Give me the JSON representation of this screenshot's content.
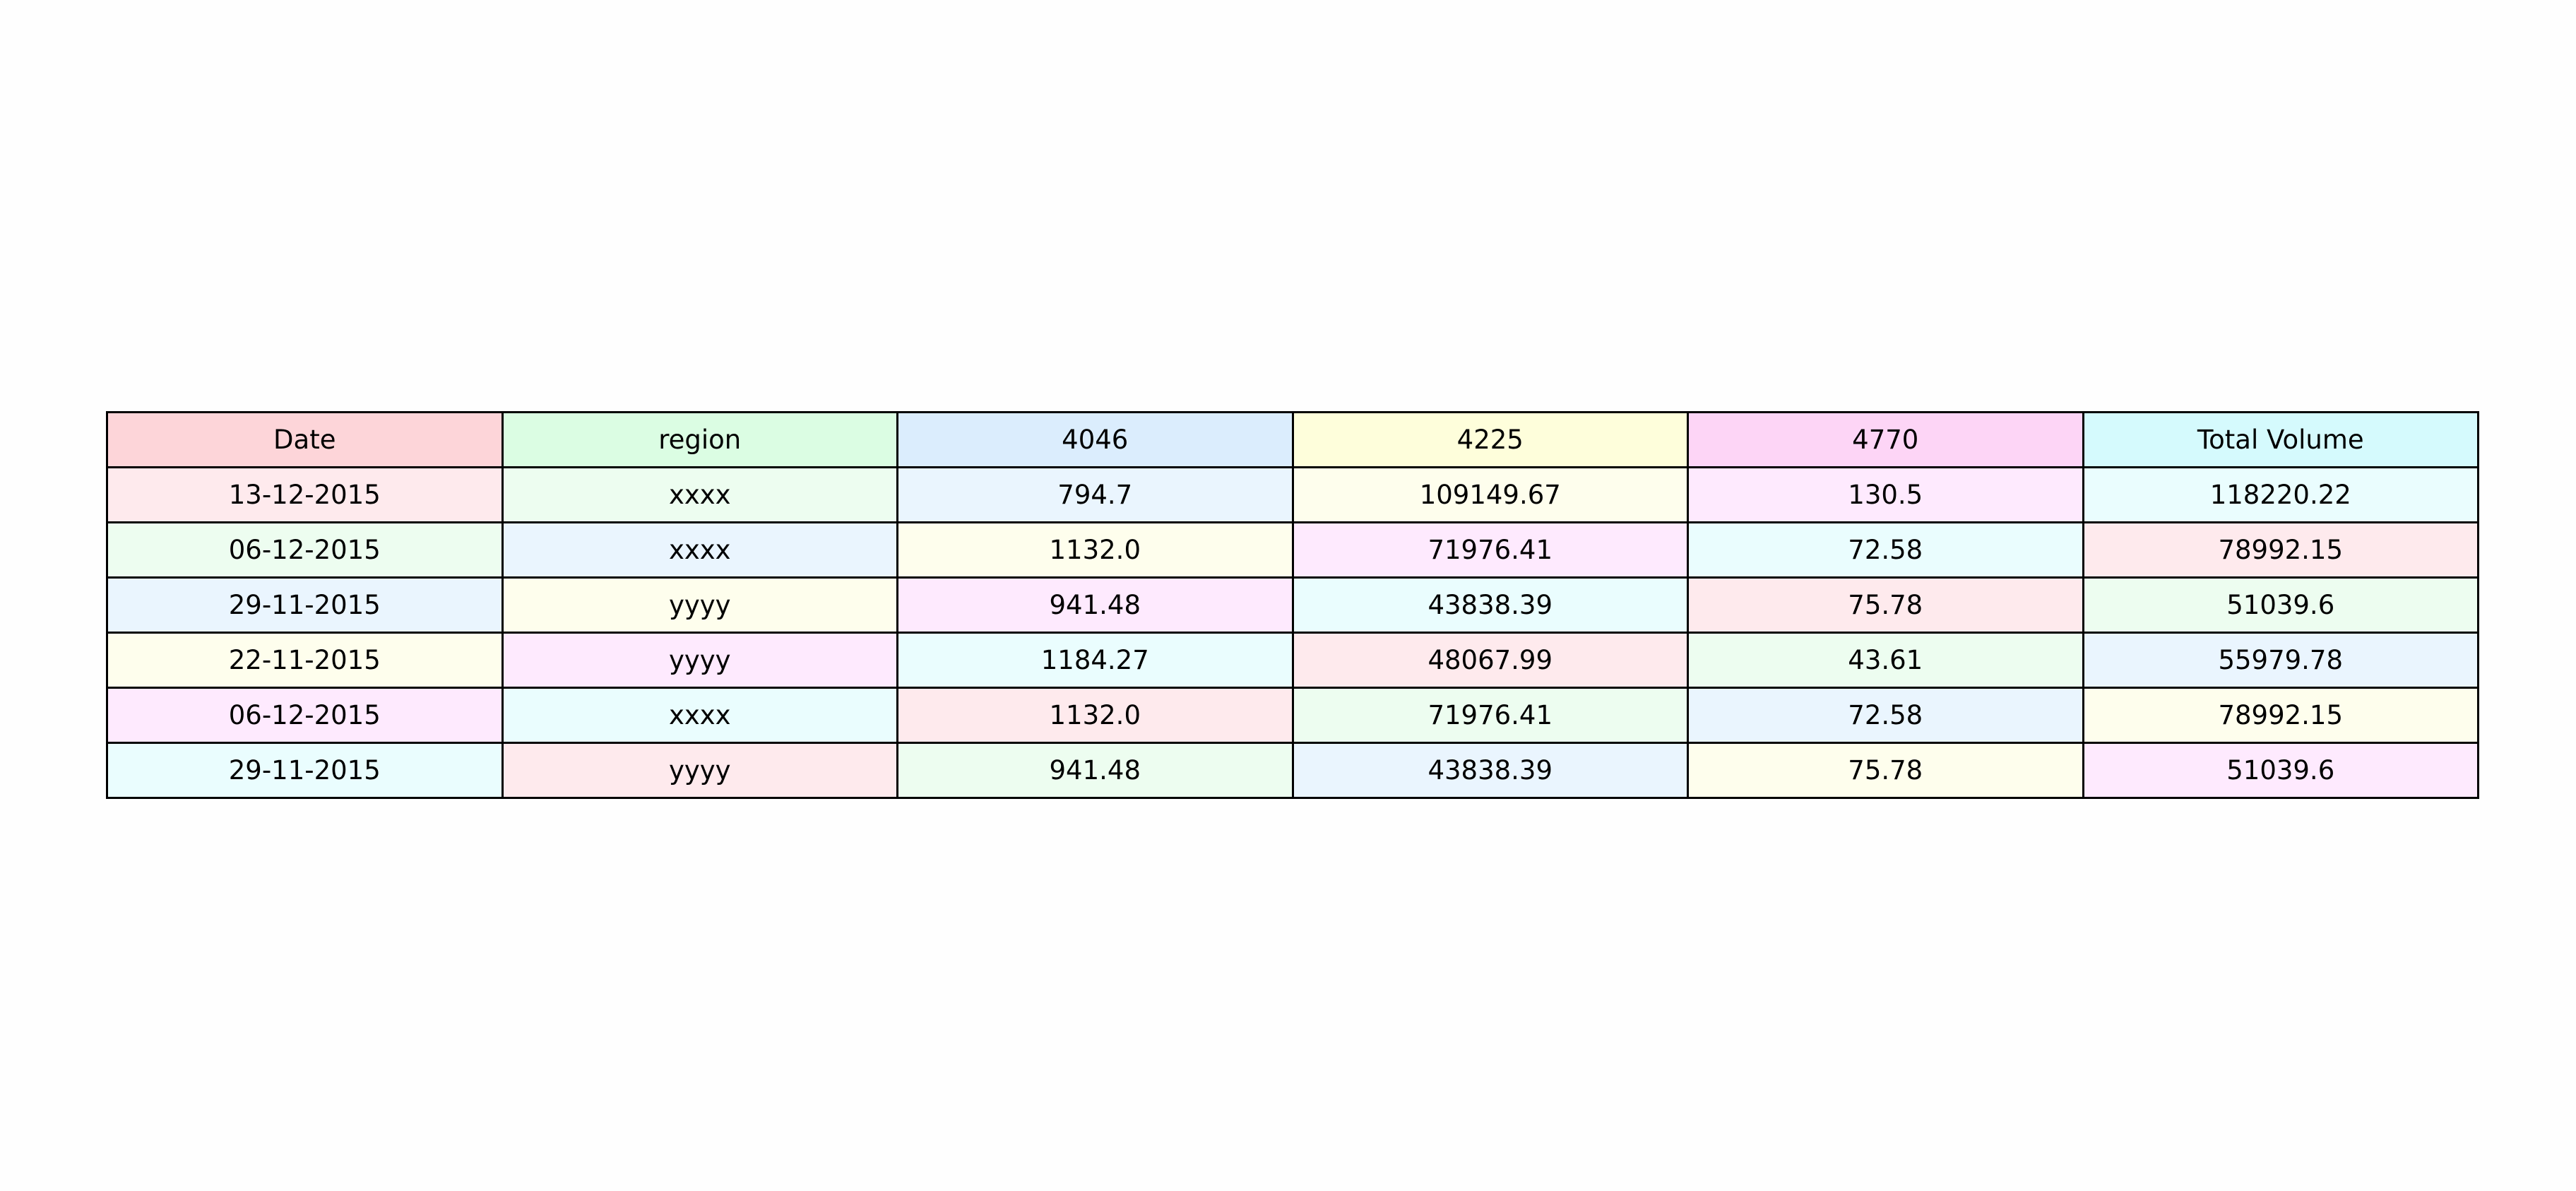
{
  "chart_data": {
    "type": "table",
    "columns": [
      "Date",
      "region",
      "4046",
      "4225",
      "4770",
      "Total Volume"
    ],
    "rows": [
      [
        "13-12-2015",
        "xxxx",
        "794.7",
        "109149.67",
        "130.5",
        "118220.22"
      ],
      [
        "06-12-2015",
        "xxxx",
        "1132.0",
        "71976.41",
        "72.58",
        "78992.15"
      ],
      [
        "29-11-2015",
        "yyyy",
        "941.48",
        "43838.39",
        "75.78",
        "51039.6"
      ],
      [
        "22-11-2015",
        "yyyy",
        "1184.27",
        "48067.99",
        "43.61",
        "55979.78"
      ],
      [
        "06-12-2015",
        "xxxx",
        "1132.0",
        "71976.41",
        "72.58",
        "78992.15"
      ],
      [
        "29-11-2015",
        "yyyy",
        "941.48",
        "43838.39",
        "75.78",
        "51039.6"
      ]
    ]
  },
  "colors": {
    "header": [
      "#fdd5d9",
      "#dbfde3",
      "#dbedfd",
      "#fefedb",
      "#fdd5f6",
      "#d5fafd"
    ],
    "cycle": [
      "#feeaed",
      "#edfdf0",
      "#eaf5fe",
      "#fefeed",
      "#feeafe",
      "#eafdfe"
    ]
  }
}
